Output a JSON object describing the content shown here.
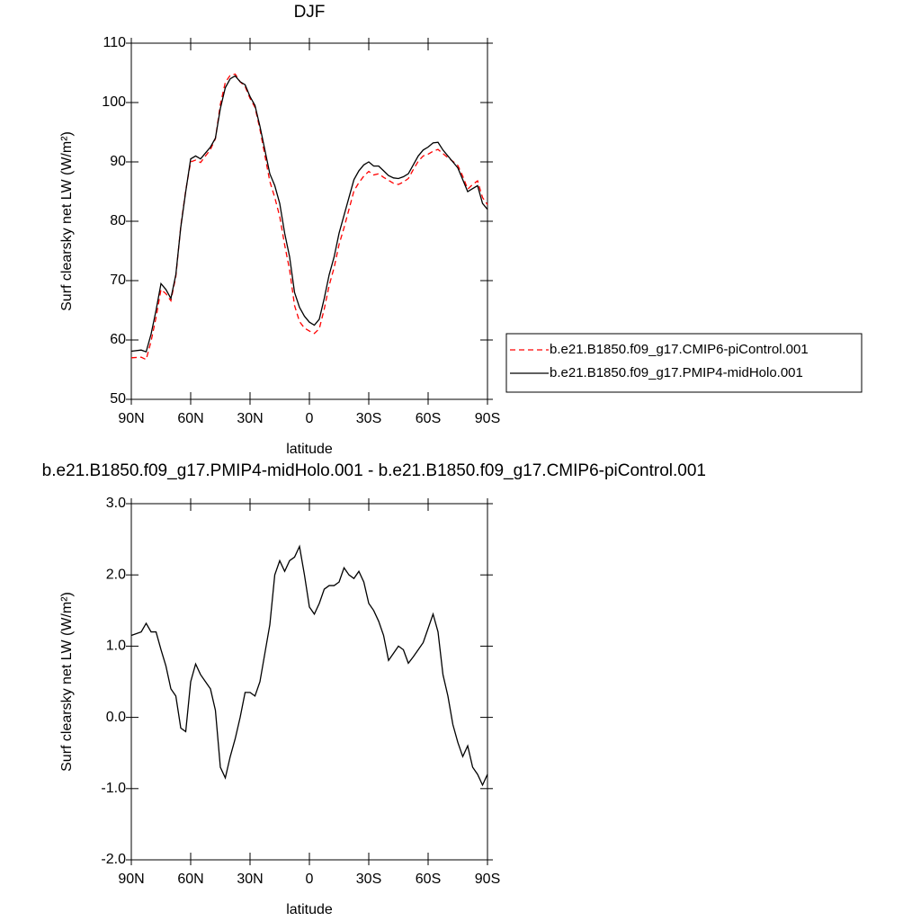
{
  "chart_data": [
    {
      "type": "line",
      "title": "DJF",
      "xlabel": "latitude",
      "ylabel": "Surf clearsky net LW (W/m²)",
      "x": [
        90,
        85,
        82.5,
        80,
        77.5,
        75,
        72.5,
        70,
        67.5,
        65,
        62.5,
        60,
        57.5,
        55,
        52.5,
        50,
        47.5,
        45,
        42.5,
        40,
        37.5,
        35,
        32.5,
        30,
        27.5,
        25,
        22.5,
        20,
        17.5,
        15,
        12.5,
        10,
        7.5,
        5,
        2.5,
        0,
        -2.5,
        -5,
        -7.5,
        -10,
        -12.5,
        -15,
        -17.5,
        -20,
        -22.5,
        -25,
        -27.5,
        -30,
        -32.5,
        -35,
        -37.5,
        -40,
        -42.5,
        -45,
        -47.5,
        -50,
        -52.5,
        -55,
        -57.5,
        -60,
        -62.5,
        -65,
        -67.5,
        -70,
        -72.5,
        -75,
        -77.5,
        -80,
        -82.5,
        -85,
        -87.5,
        -90
      ],
      "series": [
        {
          "name": "b.e21.B1850.f09_g17.CMIP6-piControl.001",
          "color": "#ff0000",
          "dash": "dashed",
          "values": [
            57.0,
            57.1,
            56.7,
            59.8,
            63.8,
            68.5,
            67.8,
            66.6,
            70.7,
            79.2,
            85.2,
            90.0,
            90.3,
            89.9,
            91.0,
            92.1,
            93.9,
            99.7,
            103.4,
            104.6,
            104.8,
            103.5,
            102.7,
            100.7,
            99.2,
            95.5,
            91.1,
            86.7,
            84.0,
            80.8,
            76.0,
            71.8,
            65.8,
            63.1,
            62.0,
            61.5,
            61.1,
            61.9,
            65.2,
            69.2,
            72.2,
            76.1,
            78.9,
            82.0,
            85.1,
            86.5,
            87.6,
            88.4,
            87.8,
            88.0,
            87.4,
            86.9,
            86.4,
            86.2,
            86.6,
            87.2,
            88.7,
            90.1,
            91.0,
            91.3,
            91.8,
            92.1,
            91.4,
            90.7,
            90.1,
            89.4,
            87.6,
            85.4,
            86.2,
            86.8,
            84.0,
            82.8
          ]
        },
        {
          "name": "b.e21.B1850.f09_g17.PMIP4-midHolo.001",
          "color": "#000000",
          "dash": "solid",
          "values": [
            58.1,
            58.3,
            58.0,
            61,
            65,
            69.5,
            68.5,
            67,
            71,
            79,
            85,
            90.5,
            91,
            90.5,
            91.5,
            92.5,
            94,
            99,
            102.5,
            104,
            104.5,
            103.5,
            103,
            101,
            99.5,
            96,
            92,
            88,
            86,
            83,
            78,
            74,
            68,
            65.5,
            64,
            63,
            62.5,
            63.5,
            67,
            71,
            74,
            78,
            81,
            84,
            87,
            88.5,
            89.5,
            90,
            89.3,
            89.3,
            88.5,
            87.7,
            87.3,
            87.2,
            87.5,
            88,
            89.5,
            91,
            92,
            92.5,
            93.2,
            93.3,
            92,
            91,
            90,
            89,
            87,
            85,
            85.5,
            86,
            83,
            82
          ]
        }
      ],
      "xlim": [
        90,
        -90
      ],
      "xticks": [
        {
          "value": 90,
          "label": "90N"
        },
        {
          "value": 60,
          "label": "60N"
        },
        {
          "value": 30,
          "label": "30N"
        },
        0,
        {
          "value": -30,
          "label": "30S"
        },
        {
          "value": -60,
          "label": "60S"
        },
        {
          "value": -90,
          "label": "90S"
        }
      ],
      "ylim": [
        50,
        110
      ],
      "yticks": [
        50,
        60,
        70,
        80,
        90,
        100,
        110
      ],
      "grid": false,
      "legend": "right"
    },
    {
      "type": "line",
      "title": "b.e21.B1850.f09_g17.PMIP4-midHolo.001 - b.e21.B1850.f09_g17.CMIP6-piControl.001",
      "xlabel": "latitude",
      "ylabel": "Surf clearsky net LW (W/m²)",
      "x": [
        90,
        85,
        82.5,
        80,
        77.5,
        75,
        72.5,
        70,
        67.5,
        65,
        62.5,
        60,
        57.5,
        55,
        52.5,
        50,
        47.5,
        45,
        42.5,
        40,
        37.5,
        35,
        32.5,
        30,
        27.5,
        25,
        22.5,
        20,
        17.5,
        15,
        12.5,
        10,
        7.5,
        5,
        2.5,
        0,
        -2.5,
        -5,
        -7.5,
        -10,
        -12.5,
        -15,
        -17.5,
        -20,
        -22.5,
        -25,
        -27.5,
        -30,
        -32.5,
        -35,
        -37.5,
        -40,
        -42.5,
        -45,
        -47.5,
        -50,
        -52.5,
        -55,
        -57.5,
        -60,
        -62.5,
        -65,
        -67.5,
        -70,
        -72.5,
        -75,
        -77.5,
        -80,
        -82.5,
        -85,
        -87.5,
        -90
      ],
      "values": [
        1.15,
        1.2,
        1.32,
        1.2,
        1.2,
        0.95,
        0.72,
        0.4,
        0.3,
        -0.15,
        -0.2,
        0.5,
        0.75,
        0.6,
        0.5,
        0.4,
        0.1,
        -0.7,
        -0.85,
        -0.55,
        -0.3,
        0.0,
        0.35,
        0.35,
        0.3,
        0.5,
        0.9,
        1.3,
        2.0,
        2.2,
        2.05,
        2.2,
        2.25,
        2.4,
        2.0,
        1.55,
        1.45,
        1.6,
        1.8,
        1.85,
        1.85,
        1.9,
        2.1,
        2.0,
        1.95,
        2.05,
        1.9,
        1.6,
        1.5,
        1.35,
        1.15,
        0.8,
        0.9,
        1.0,
        0.95,
        0.76,
        0.85,
        0.95,
        1.05,
        1.25,
        1.45,
        1.2,
        0.6,
        0.3,
        -0.1,
        -0.35,
        -0.55,
        -0.4,
        -0.7,
        -0.8,
        -0.95,
        -0.8
      ],
      "color": "#000000",
      "xlim": [
        90,
        -90
      ],
      "xticks": [
        {
          "value": 90,
          "label": "90N"
        },
        {
          "value": 60,
          "label": "60N"
        },
        {
          "value": 30,
          "label": "30N"
        },
        0,
        {
          "value": -30,
          "label": "30S"
        },
        {
          "value": -60,
          "label": "60S"
        },
        {
          "value": -90,
          "label": "90S"
        }
      ],
      "ylim": [
        -2,
        3
      ],
      "yticks": [
        {
          "value": -2,
          "label": "-2.0"
        },
        {
          "value": -1,
          "label": "-1.0"
        },
        {
          "value": 0,
          "label": "0.0"
        },
        {
          "value": 1,
          "label": "1.0"
        },
        {
          "value": 2,
          "label": "2.0"
        },
        {
          "value": 3,
          "label": "3.0"
        }
      ],
      "grid": false
    }
  ]
}
